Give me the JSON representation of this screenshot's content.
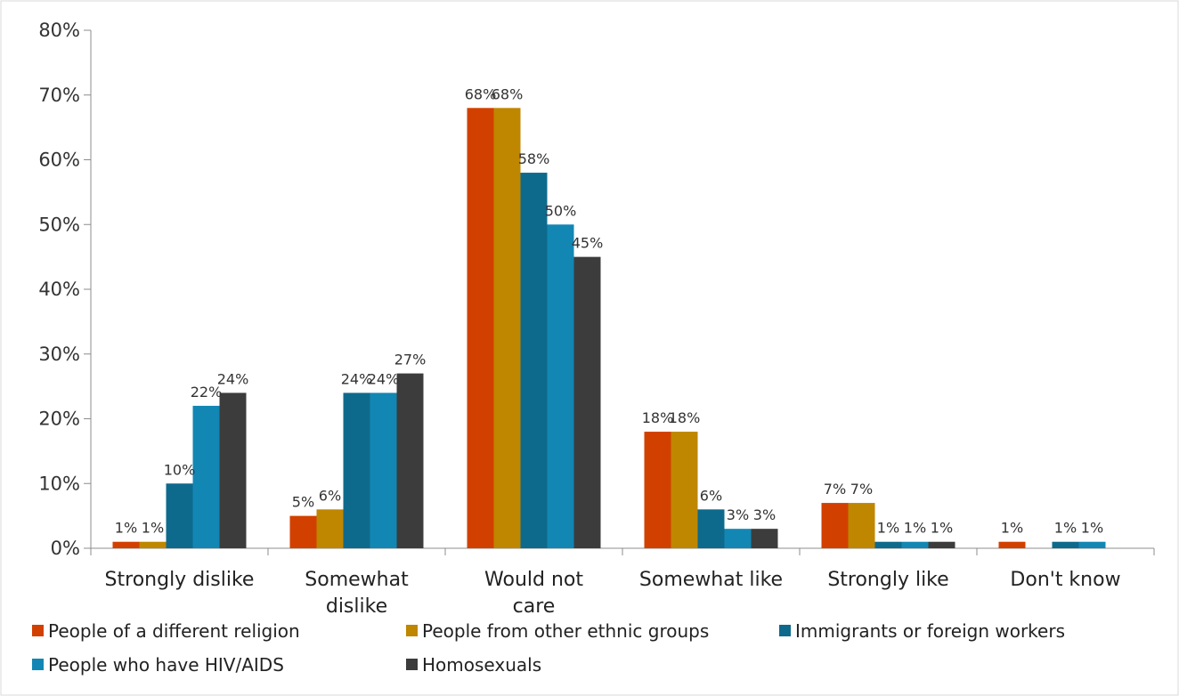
{
  "chart_data": {
    "type": "bar",
    "title": "",
    "xlabel": "",
    "ylabel": "",
    "ylim": [
      0,
      80
    ],
    "yticks": [
      "0%",
      "10%",
      "20%",
      "30%",
      "40%",
      "50%",
      "60%",
      "70%",
      "80%"
    ],
    "grid": false,
    "legend_position": "bottom",
    "categories": [
      [
        "Strongly dislike"
      ],
      [
        "Somewhat",
        "dislike"
      ],
      [
        "Would not",
        "care"
      ],
      [
        "Somewhat like"
      ],
      [
        "Strongly like"
      ],
      [
        "Don't know"
      ]
    ],
    "series": [
      {
        "name": "People of a different religion",
        "color": "#D24000",
        "values": [
          1,
          5,
          68,
          18,
          7,
          1
        ],
        "labels": [
          "1%",
          "5%",
          "68%",
          "18%",
          "7%",
          "1%"
        ]
      },
      {
        "name": "People from other ethnic groups",
        "color": "#BF8600",
        "values": [
          1,
          6,
          68,
          18,
          7,
          0
        ],
        "labels": [
          "1%",
          "6%",
          "68%",
          "18%",
          "7%",
          ""
        ]
      },
      {
        "name": "Immigrants or foreign workers",
        "color": "#0E6A8C",
        "values": [
          10,
          24,
          58,
          6,
          1,
          1
        ],
        "labels": [
          "10%",
          "24%",
          "58%",
          "6%",
          "1%",
          "1%"
        ]
      },
      {
        "name": "People who have HIV/AIDS",
        "color": "#1287B4",
        "values": [
          22,
          24,
          50,
          3,
          1,
          1
        ],
        "labels": [
          "22%",
          "24%",
          "50%",
          "3%",
          "1%",
          "1%"
        ]
      },
      {
        "name": "Homosexuals",
        "color": "#3C3C3C",
        "values": [
          24,
          27,
          45,
          3,
          1,
          0
        ],
        "labels": [
          "24%",
          "27%",
          "45%",
          "3%",
          "1%",
          ""
        ]
      }
    ]
  }
}
